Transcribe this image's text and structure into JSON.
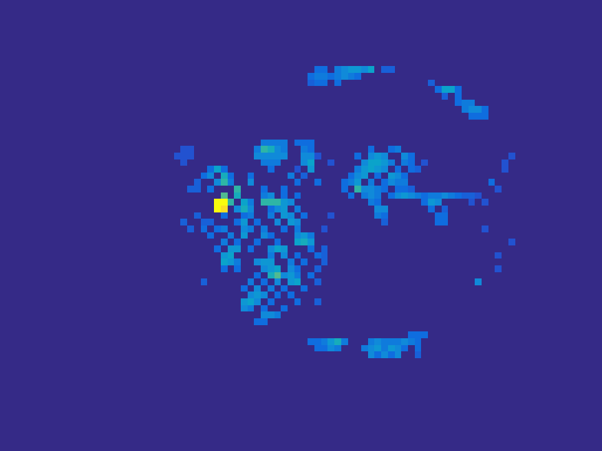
{
  "chart_data": {
    "type": "heatmap",
    "tick_labels": false,
    "xlim": [
      0,
      90
    ],
    "ylim": [
      68,
      0
    ],
    "color_range": [
      0,
      1
    ],
    "cells": [
      [
        39,
        21,
        0.35
      ],
      [
        40,
        21,
        0.35
      ],
      [
        41,
        21,
        0.35
      ],
      [
        42,
        21,
        0.35
      ],
      [
        44,
        21,
        0.3
      ],
      [
        45,
        21,
        0.3
      ],
      [
        46,
        21,
        0.3
      ],
      [
        27,
        22,
        0.2
      ],
      [
        28,
        22,
        0.2
      ],
      [
        38,
        22,
        0.35
      ],
      [
        39,
        22,
        0.6
      ],
      [
        40,
        22,
        0.55
      ],
      [
        41,
        22,
        0.4
      ],
      [
        42,
        22,
        0.35
      ],
      [
        45,
        22,
        0.35
      ],
      [
        46,
        22,
        0.3
      ],
      [
        26,
        23,
        0.2
      ],
      [
        27,
        23,
        0.2
      ],
      [
        28,
        23,
        0.2
      ],
      [
        38,
        23,
        0.4
      ],
      [
        39,
        23,
        0.4
      ],
      [
        40,
        23,
        0.4
      ],
      [
        41,
        23,
        0.4
      ],
      [
        42,
        23,
        0.4
      ],
      [
        45,
        23,
        0.4
      ],
      [
        46,
        23,
        0.4
      ],
      [
        47,
        23,
        0.2
      ],
      [
        27,
        24,
        0.2
      ],
      [
        39,
        24,
        0.35
      ],
      [
        40,
        24,
        0.35
      ],
      [
        41,
        24,
        0.35
      ],
      [
        45,
        24,
        0.4
      ],
      [
        46,
        24,
        0.5
      ],
      [
        49,
        24,
        0.2
      ],
      [
        31,
        25,
        0.3
      ],
      [
        32,
        25,
        0.5
      ],
      [
        33,
        25,
        0.3
      ],
      [
        40,
        25,
        0.3
      ],
      [
        44,
        25,
        0.2
      ],
      [
        46,
        25,
        0.45
      ],
      [
        30,
        26,
        0.3
      ],
      [
        31,
        26,
        0.4
      ],
      [
        33,
        26,
        0.55
      ],
      [
        34,
        26,
        0.3
      ],
      [
        37,
        26,
        0.3
      ],
      [
        43,
        26,
        0.35
      ],
      [
        45,
        26,
        0.25
      ],
      [
        29,
        27,
        0.25
      ],
      [
        32,
        27,
        0.4
      ],
      [
        33,
        27,
        0.6
      ],
      [
        34,
        27,
        0.35
      ],
      [
        37,
        27,
        0.4
      ],
      [
        44,
        27,
        0.3
      ],
      [
        47,
        27,
        0.3
      ],
      [
        28,
        28,
        0.25
      ],
      [
        29,
        28,
        0.25
      ],
      [
        31,
        28,
        0.3
      ],
      [
        35,
        28,
        0.6
      ],
      [
        39,
        28,
        0.3
      ],
      [
        42,
        28,
        0.3
      ],
      [
        33,
        29,
        0.65
      ],
      [
        35,
        29,
        0.55
      ],
      [
        39,
        29,
        0.35
      ],
      [
        40,
        29,
        0.4
      ],
      [
        42,
        29,
        0.3
      ],
      [
        44,
        29,
        0.3
      ],
      [
        32,
        30,
        1.0
      ],
      [
        33,
        30,
        1.0
      ],
      [
        34,
        30,
        0.6
      ],
      [
        36,
        30,
        0.5
      ],
      [
        37,
        30,
        0.35
      ],
      [
        39,
        30,
        0.6
      ],
      [
        40,
        30,
        0.6
      ],
      [
        41,
        30,
        0.6
      ],
      [
        42,
        30,
        0.45
      ],
      [
        43,
        30,
        0.4
      ],
      [
        32,
        31,
        1.0
      ],
      [
        33,
        31,
        0.95
      ],
      [
        35,
        31,
        0.4
      ],
      [
        36,
        31,
        0.55
      ],
      [
        37,
        31,
        0.4
      ],
      [
        40,
        31,
        0.3
      ],
      [
        41,
        31,
        0.4
      ],
      [
        42,
        31,
        0.45
      ],
      [
        44,
        31,
        0.35
      ],
      [
        29,
        32,
        0.25
      ],
      [
        33,
        32,
        0.3
      ],
      [
        36,
        32,
        0.3
      ],
      [
        37,
        32,
        0.35
      ],
      [
        40,
        32,
        0.35
      ],
      [
        42,
        32,
        0.45
      ],
      [
        43,
        32,
        0.4
      ],
      [
        45,
        32,
        0.3
      ],
      [
        49,
        32,
        0.2
      ],
      [
        27,
        33,
        0.25
      ],
      [
        30,
        33,
        0.25
      ],
      [
        31,
        33,
        0.25
      ],
      [
        35,
        33,
        0.3
      ],
      [
        36,
        33,
        0.45
      ],
      [
        38,
        33,
        0.3
      ],
      [
        41,
        33,
        0.4
      ],
      [
        43,
        33,
        0.45
      ],
      [
        44,
        33,
        0.4
      ],
      [
        28,
        34,
        0.25
      ],
      [
        30,
        34,
        0.3
      ],
      [
        32,
        34,
        0.3
      ],
      [
        33,
        34,
        0.35
      ],
      [
        36,
        34,
        0.4
      ],
      [
        37,
        34,
        0.35
      ],
      [
        39,
        34,
        0.35
      ],
      [
        42,
        34,
        0.3
      ],
      [
        44,
        34,
        0.35
      ],
      [
        48,
        34,
        0.2
      ],
      [
        31,
        35,
        0.3
      ],
      [
        34,
        35,
        0.35
      ],
      [
        36,
        35,
        0.45
      ],
      [
        39,
        35,
        0.4
      ],
      [
        40,
        35,
        0.3
      ],
      [
        44,
        35,
        0.4
      ],
      [
        45,
        35,
        0.45
      ],
      [
        46,
        35,
        0.35
      ],
      [
        33,
        36,
        0.35
      ],
      [
        35,
        36,
        0.3
      ],
      [
        38,
        36,
        0.3
      ],
      [
        41,
        36,
        0.3
      ],
      [
        44,
        36,
        0.5
      ],
      [
        45,
        36,
        0.55
      ],
      [
        46,
        36,
        0.45
      ],
      [
        32,
        37,
        0.3
      ],
      [
        34,
        37,
        0.45
      ],
      [
        35,
        37,
        0.45
      ],
      [
        37,
        37,
        0.3
      ],
      [
        40,
        37,
        0.4
      ],
      [
        41,
        37,
        0.5
      ],
      [
        42,
        37,
        0.45
      ],
      [
        46,
        37,
        0.3
      ],
      [
        48,
        37,
        0.25
      ],
      [
        33,
        38,
        0.45
      ],
      [
        34,
        38,
        0.5
      ],
      [
        40,
        38,
        0.35
      ],
      [
        42,
        38,
        0.4
      ],
      [
        44,
        38,
        0.3
      ],
      [
        47,
        38,
        0.3
      ],
      [
        48,
        38,
        0.25
      ],
      [
        33,
        39,
        0.5
      ],
      [
        34,
        39,
        0.45
      ],
      [
        35,
        39,
        0.35
      ],
      [
        38,
        39,
        0.4
      ],
      [
        39,
        39,
        0.45
      ],
      [
        40,
        39,
        0.45
      ],
      [
        43,
        39,
        0.35
      ],
      [
        45,
        39,
        0.3
      ],
      [
        48,
        39,
        0.25
      ],
      [
        33,
        40,
        0.3
      ],
      [
        35,
        40,
        0.3
      ],
      [
        39,
        40,
        0.4
      ],
      [
        40,
        40,
        0.45
      ],
      [
        41,
        40,
        0.5
      ],
      [
        43,
        40,
        0.4
      ],
      [
        44,
        40,
        0.3
      ],
      [
        47,
        40,
        0.25
      ],
      [
        38,
        41,
        0.3
      ],
      [
        40,
        41,
        0.55
      ],
      [
        41,
        41,
        0.65
      ],
      [
        42,
        41,
        0.4
      ],
      [
        43,
        41,
        0.45
      ],
      [
        44,
        41,
        0.35
      ],
      [
        46,
        41,
        0.3
      ],
      [
        30,
        42,
        0.25
      ],
      [
        37,
        42,
        0.35
      ],
      [
        39,
        42,
        0.3
      ],
      [
        41,
        42,
        0.4
      ],
      [
        43,
        42,
        0.45
      ],
      [
        44,
        42,
        0.5
      ],
      [
        47,
        42,
        0.25
      ],
      [
        36,
        43,
        0.3
      ],
      [
        38,
        43,
        0.4
      ],
      [
        40,
        43,
        0.35
      ],
      [
        42,
        43,
        0.3
      ],
      [
        45,
        43,
        0.3
      ],
      [
        37,
        44,
        0.4
      ],
      [
        38,
        44,
        0.45
      ],
      [
        39,
        44,
        0.4
      ],
      [
        41,
        44,
        0.3
      ],
      [
        43,
        44,
        0.3
      ],
      [
        36,
        45,
        0.45
      ],
      [
        37,
        45,
        0.5
      ],
      [
        38,
        45,
        0.4
      ],
      [
        40,
        45,
        0.3
      ],
      [
        44,
        45,
        0.3
      ],
      [
        47,
        45,
        0.25
      ],
      [
        36,
        46,
        0.4
      ],
      [
        37,
        46,
        0.35
      ],
      [
        39,
        46,
        0.3
      ],
      [
        42,
        46,
        0.3
      ],
      [
        39,
        47,
        0.4
      ],
      [
        40,
        47,
        0.4
      ],
      [
        41,
        47,
        0.35
      ],
      [
        38,
        48,
        0.3
      ],
      [
        39,
        48,
        0.3
      ],
      [
        55,
        22,
        0.3
      ],
      [
        58,
        22,
        0.3
      ],
      [
        59,
        22,
        0.35
      ],
      [
        53,
        23,
        0.3
      ],
      [
        55,
        23,
        0.4
      ],
      [
        56,
        23,
        0.45
      ],
      [
        57,
        23,
        0.4
      ],
      [
        60,
        23,
        0.4
      ],
      [
        61,
        23,
        0.3
      ],
      [
        54,
        24,
        0.4
      ],
      [
        55,
        24,
        0.5
      ],
      [
        56,
        24,
        0.5
      ],
      [
        57,
        24,
        0.45
      ],
      [
        58,
        24,
        0.35
      ],
      [
        60,
        24,
        0.35
      ],
      [
        61,
        24,
        0.3
      ],
      [
        63,
        24,
        0.2
      ],
      [
        53,
        25,
        0.35
      ],
      [
        54,
        25,
        0.45
      ],
      [
        55,
        25,
        0.5
      ],
      [
        56,
        25,
        0.45
      ],
      [
        57,
        25,
        0.4
      ],
      [
        59,
        25,
        0.3
      ],
      [
        61,
        25,
        0.3
      ],
      [
        62,
        25,
        0.25
      ],
      [
        52,
        26,
        0.3
      ],
      [
        53,
        26,
        0.4
      ],
      [
        54,
        26,
        0.45
      ],
      [
        56,
        26,
        0.3
      ],
      [
        58,
        26,
        0.45
      ],
      [
        59,
        26,
        0.4
      ],
      [
        60,
        26,
        0.3
      ],
      [
        51,
        27,
        0.3
      ],
      [
        52,
        27,
        0.35
      ],
      [
        53,
        27,
        0.45
      ],
      [
        55,
        27,
        0.35
      ],
      [
        57,
        27,
        0.3
      ],
      [
        58,
        27,
        0.4
      ],
      [
        59,
        27,
        0.35
      ],
      [
        60,
        27,
        0.35
      ],
      [
        51,
        28,
        0.3
      ],
      [
        53,
        28,
        0.6
      ],
      [
        54,
        28,
        0.4
      ],
      [
        55,
        28,
        0.4
      ],
      [
        56,
        28,
        0.35
      ],
      [
        57,
        28,
        0.3
      ],
      [
        59,
        28,
        0.3
      ],
      [
        60,
        28,
        0.3
      ],
      [
        61,
        28,
        0.25
      ],
      [
        52,
        29,
        0.3
      ],
      [
        54,
        29,
        0.35
      ],
      [
        55,
        29,
        0.4
      ],
      [
        56,
        29,
        0.35
      ],
      [
        58,
        29,
        0.3
      ],
      [
        59,
        29,
        0.4
      ],
      [
        60,
        29,
        0.45
      ],
      [
        61,
        29,
        0.4
      ],
      [
        62,
        29,
        0.35
      ],
      [
        63,
        29,
        0.3
      ],
      [
        64,
        29,
        0.35
      ],
      [
        65,
        29,
        0.35
      ],
      [
        66,
        29,
        0.4
      ],
      [
        67,
        29,
        0.35
      ],
      [
        68,
        29,
        0.3
      ],
      [
        69,
        29,
        0.25
      ],
      [
        70,
        29,
        0.25
      ],
      [
        71,
        29,
        0.2
      ],
      [
        55,
        30,
        0.35
      ],
      [
        56,
        30,
        0.3
      ],
      [
        63,
        30,
        0.3
      ],
      [
        64,
        30,
        0.45
      ],
      [
        65,
        30,
        0.4
      ],
      [
        70,
        30,
        0.2
      ],
      [
        72,
        30,
        0.2
      ],
      [
        56,
        31,
        0.4
      ],
      [
        57,
        31,
        0.4
      ],
      [
        64,
        31,
        0.3
      ],
      [
        66,
        31,
        0.25
      ],
      [
        56,
        32,
        0.35
      ],
      [
        57,
        32,
        0.3
      ],
      [
        65,
        32,
        0.3
      ],
      [
        66,
        32,
        0.3
      ],
      [
        57,
        33,
        0.25
      ],
      [
        65,
        33,
        0.3
      ],
      [
        66,
        33,
        0.3
      ],
      [
        73,
        27,
        0.3
      ],
      [
        75,
        24,
        0.2
      ],
      [
        75,
        25,
        0.2
      ],
      [
        76,
        23,
        0.2
      ],
      [
        74,
        28,
        0.2
      ],
      [
        72,
        34,
        0.2
      ],
      [
        76,
        36,
        0.2
      ],
      [
        74,
        38,
        0.2
      ],
      [
        74,
        40,
        0.2
      ],
      [
        71,
        42,
        0.4
      ],
      [
        47,
        10,
        0.3
      ],
      [
        48,
        10,
        0.3
      ],
      [
        50,
        10,
        0.35
      ],
      [
        51,
        10,
        0.4
      ],
      [
        52,
        10,
        0.45
      ],
      [
        53,
        10,
        0.45
      ],
      [
        54,
        10,
        0.4
      ],
      [
        55,
        10,
        0.5
      ],
      [
        57,
        10,
        0.25
      ],
      [
        58,
        10,
        0.25
      ],
      [
        46,
        11,
        0.3
      ],
      [
        47,
        11,
        0.35
      ],
      [
        48,
        11,
        0.35
      ],
      [
        49,
        11,
        0.3
      ],
      [
        50,
        11,
        0.35
      ],
      [
        51,
        11,
        0.4
      ],
      [
        52,
        11,
        0.35
      ],
      [
        53,
        11,
        0.3
      ],
      [
        46,
        12,
        0.25
      ],
      [
        47,
        12,
        0.3
      ],
      [
        48,
        12,
        0.3
      ],
      [
        50,
        12,
        0.3
      ],
      [
        64,
        12,
        0.25
      ],
      [
        65,
        13,
        0.3
      ],
      [
        66,
        13,
        0.5
      ],
      [
        67,
        13,
        0.5
      ],
      [
        68,
        13,
        0.3
      ],
      [
        66,
        14,
        0.25
      ],
      [
        68,
        14,
        0.3
      ],
      [
        68,
        15,
        0.3
      ],
      [
        69,
        15,
        0.35
      ],
      [
        70,
        15,
        0.35
      ],
      [
        69,
        16,
        0.35
      ],
      [
        70,
        16,
        0.4
      ],
      [
        71,
        16,
        0.4
      ],
      [
        72,
        16,
        0.3
      ],
      [
        70,
        17,
        0.3
      ],
      [
        71,
        17,
        0.3
      ],
      [
        72,
        17,
        0.3
      ],
      [
        61,
        50,
        0.3
      ],
      [
        62,
        50,
        0.3
      ],
      [
        63,
        50,
        0.3
      ],
      [
        46,
        51,
        0.3
      ],
      [
        47,
        51,
        0.3
      ],
      [
        48,
        51,
        0.35
      ],
      [
        49,
        51,
        0.45
      ],
      [
        50,
        51,
        0.55
      ],
      [
        51,
        51,
        0.35
      ],
      [
        55,
        51,
        0.35
      ],
      [
        56,
        51,
        0.4
      ],
      [
        57,
        51,
        0.35
      ],
      [
        58,
        51,
        0.35
      ],
      [
        59,
        51,
        0.35
      ],
      [
        60,
        51,
        0.4
      ],
      [
        61,
        51,
        0.35
      ],
      [
        62,
        51,
        0.3
      ],
      [
        47,
        52,
        0.3
      ],
      [
        48,
        52,
        0.3
      ],
      [
        49,
        52,
        0.4
      ],
      [
        50,
        52,
        0.35
      ],
      [
        54,
        52,
        0.35
      ],
      [
        55,
        52,
        0.4
      ],
      [
        56,
        52,
        0.45
      ],
      [
        57,
        52,
        0.35
      ],
      [
        58,
        52,
        0.45
      ],
      [
        59,
        52,
        0.4
      ],
      [
        60,
        52,
        0.3
      ],
      [
        62,
        52,
        0.3
      ],
      [
        55,
        53,
        0.4
      ],
      [
        56,
        53,
        0.3
      ],
      [
        57,
        53,
        0.4
      ],
      [
        58,
        53,
        0.3
      ],
      [
        59,
        53,
        0.4
      ],
      [
        62,
        53,
        0.25
      ]
    ]
  }
}
